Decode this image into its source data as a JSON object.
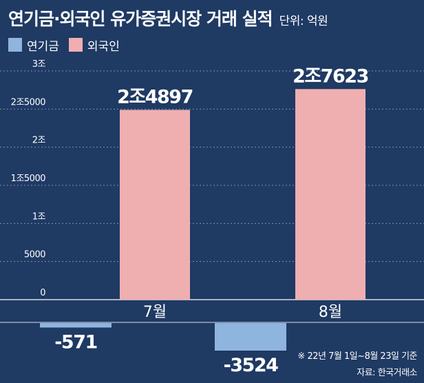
{
  "title": "연기금·외국인 유가증권시장 거래 실적",
  "unit_label": "단위: 억원",
  "footnote": "※ 22년 7월 1일~8월 23일 기준",
  "source": "자료: 한국거래소",
  "colors": {
    "background": "#1f3a63",
    "pension": "#8fb4dd",
    "foreign": "#efafb1",
    "pension_label": "#ffffff",
    "foreign_label": "#ffffff"
  },
  "chart_data": {
    "type": "bar",
    "title": "연기금·외국인 유가증권시장 거래 실적",
    "categories": [
      "7월",
      "8월"
    ],
    "series": [
      {
        "name": "연기금",
        "values": [
          -571,
          -3524
        ],
        "labels": [
          "-571",
          "-3524"
        ]
      },
      {
        "name": "외국인",
        "values": [
          24897,
          27623
        ],
        "labels": [
          "2조4897",
          "2조7623"
        ]
      }
    ],
    "yticks": [
      {
        "value": 0,
        "label": "0"
      },
      {
        "value": 5000,
        "label": "5000"
      },
      {
        "value": 10000,
        "label": "1조"
      },
      {
        "value": 15000,
        "label": "1조5000"
      },
      {
        "value": 20000,
        "label": "2조"
      },
      {
        "value": 25000,
        "label": "2조5000"
      },
      {
        "value": 30000,
        "label": "3조"
      }
    ],
    "ylim": [
      -4000,
      30000
    ],
    "grid": true,
    "legend": "top-left"
  }
}
